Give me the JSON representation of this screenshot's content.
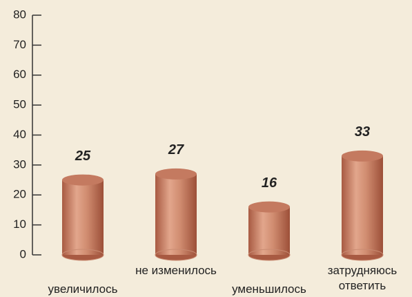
{
  "chart_data": {
    "type": "bar",
    "categories": [
      "увеличилось",
      "не изменилось",
      "уменьшилось",
      "затрудняюсь ответить"
    ],
    "values": [
      25,
      27,
      16,
      33
    ],
    "color": "#c47a60",
    "ylim": [
      0,
      80
    ],
    "yticks": [
      0,
      10,
      20,
      30,
      40,
      50,
      60,
      70,
      80
    ]
  }
}
